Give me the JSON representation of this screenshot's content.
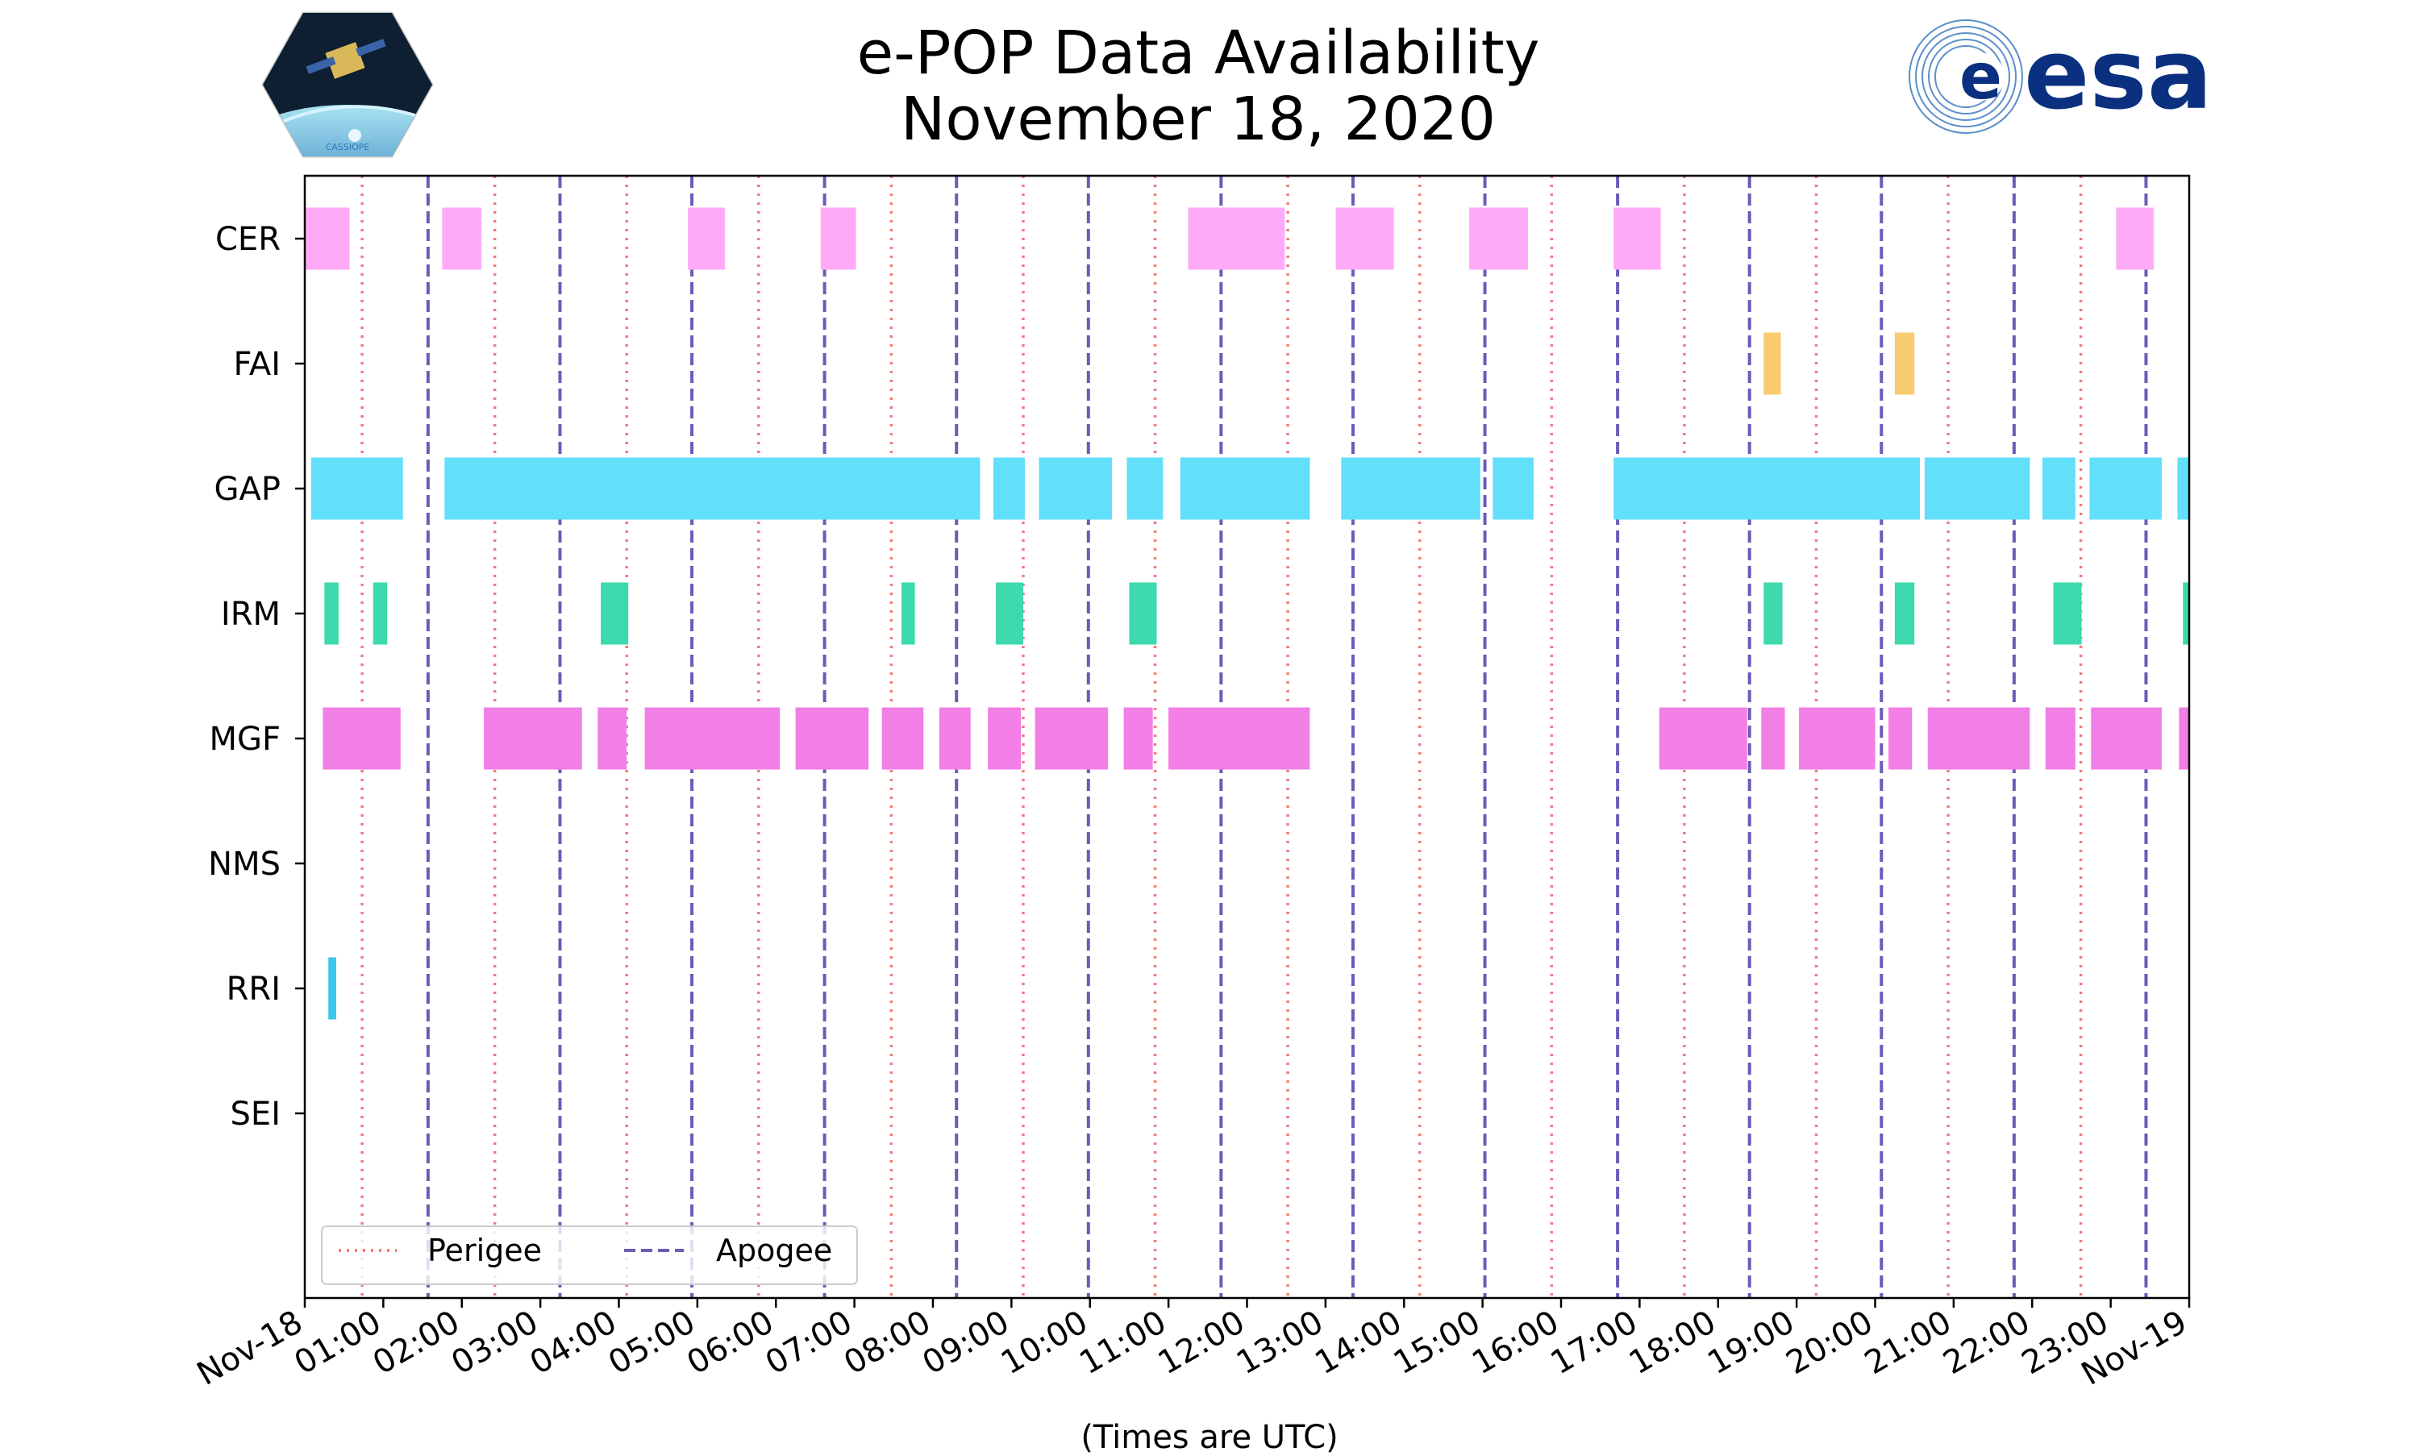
{
  "chart_data": {
    "type": "timeline",
    "title": "e-POP Data Availability",
    "subtitle": "November 18, 2020",
    "xlabel": "(Times are UTC)",
    "x_range_hours": [
      0,
      24
    ],
    "x_tick_labels": [
      "Nov-18",
      "01:00",
      "02:00",
      "03:00",
      "04:00",
      "05:00",
      "06:00",
      "07:00",
      "08:00",
      "09:00",
      "10:00",
      "11:00",
      "12:00",
      "13:00",
      "14:00",
      "15:00",
      "16:00",
      "17:00",
      "18:00",
      "19:00",
      "20:00",
      "21:00",
      "22:00",
      "23:00",
      "Nov-19"
    ],
    "instruments": [
      "CER",
      "FAI",
      "GAP",
      "IRM",
      "MGF",
      "NMS",
      "RRI",
      "SEI"
    ],
    "series": [
      {
        "name": "CER",
        "color": "#ffaaf6",
        "intervals": [
          [
            0.0,
            0.57
          ],
          [
            1.75,
            2.25
          ],
          [
            4.88,
            5.35
          ],
          [
            6.57,
            7.02
          ],
          [
            11.25,
            12.48
          ],
          [
            13.13,
            13.87
          ],
          [
            14.83,
            15.58
          ],
          [
            16.67,
            17.27
          ],
          [
            23.07,
            23.55
          ]
        ]
      },
      {
        "name": "FAI",
        "color": "#f9cc72",
        "intervals": [
          [
            18.58,
            18.8
          ],
          [
            20.25,
            20.5
          ]
        ]
      },
      {
        "name": "GAP",
        "color": "#62dffa",
        "intervals": [
          [
            0.08,
            1.25
          ],
          [
            1.78,
            8.6
          ],
          [
            8.77,
            9.17
          ],
          [
            9.35,
            10.28
          ],
          [
            10.47,
            10.93
          ],
          [
            11.15,
            12.8
          ],
          [
            13.2,
            14.97
          ],
          [
            15.13,
            15.65
          ],
          [
            16.67,
            20.57
          ],
          [
            20.63,
            21.97
          ],
          [
            22.13,
            22.55
          ],
          [
            22.73,
            23.65
          ],
          [
            23.85,
            24.0
          ]
        ]
      },
      {
        "name": "IRM",
        "color": "#3ed9ac",
        "intervals": [
          [
            0.25,
            0.43
          ],
          [
            0.87,
            1.05
          ],
          [
            3.77,
            4.12
          ],
          [
            7.6,
            7.77
          ],
          [
            8.8,
            9.15
          ],
          [
            10.5,
            10.85
          ],
          [
            18.58,
            18.82
          ],
          [
            20.25,
            20.5
          ],
          [
            22.27,
            22.63
          ],
          [
            23.92,
            24.0
          ]
        ]
      },
      {
        "name": "MGF",
        "color": "#f17fe6",
        "intervals": [
          [
            0.23,
            1.22
          ],
          [
            2.28,
            3.53
          ],
          [
            3.73,
            4.1
          ],
          [
            4.33,
            6.05
          ],
          [
            6.25,
            7.18
          ],
          [
            7.35,
            7.88
          ],
          [
            8.08,
            8.48
          ],
          [
            8.7,
            9.12
          ],
          [
            9.3,
            10.23
          ],
          [
            10.43,
            10.8
          ],
          [
            11.0,
            12.8
          ],
          [
            17.25,
            18.37
          ],
          [
            18.55,
            18.85
          ],
          [
            19.03,
            20.0
          ],
          [
            20.17,
            20.47
          ],
          [
            20.67,
            21.97
          ],
          [
            22.17,
            22.55
          ],
          [
            22.75,
            23.65
          ],
          [
            23.87,
            24.0
          ]
        ]
      },
      {
        "name": "NMS",
        "color": "#000000",
        "intervals": []
      },
      {
        "name": "RRI",
        "color": "#3bc7eb",
        "intervals": [
          [
            0.3,
            0.4
          ]
        ]
      },
      {
        "name": "SEI",
        "color": "#000000",
        "intervals": []
      }
    ],
    "perigee_hours": [
      0.73,
      2.42,
      4.1,
      5.78,
      7.47,
      9.15,
      10.83,
      12.52,
      14.2,
      15.88,
      17.57,
      19.25,
      20.93,
      22.62
    ],
    "apogee_hours": [
      1.57,
      3.25,
      4.93,
      6.62,
      8.3,
      9.98,
      11.67,
      13.35,
      15.03,
      16.72,
      18.4,
      20.08,
      21.77,
      23.45
    ],
    "perigee_color": "#f47a7a",
    "apogee_color": "#6b5cb8",
    "legend": {
      "position": "lower-left",
      "entries": [
        "Perigee",
        "Apogee"
      ]
    }
  },
  "logos": {
    "left_caption": "CASSIOPE",
    "right_text": "esa"
  }
}
